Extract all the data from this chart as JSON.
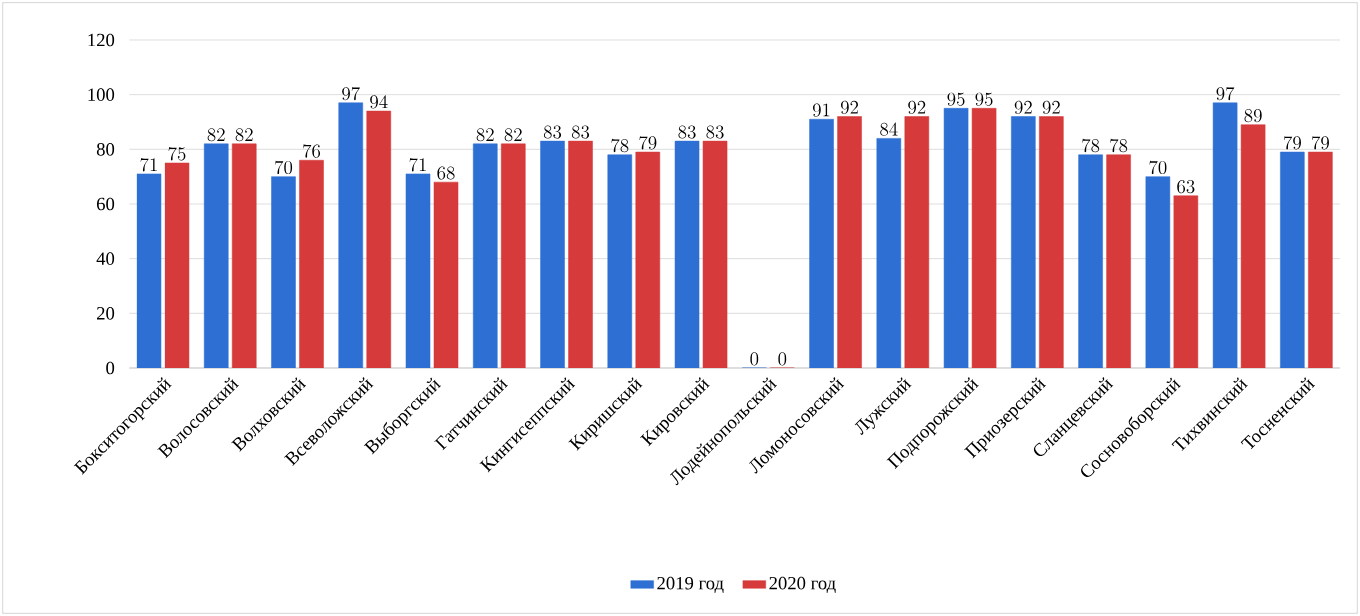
{
  "chart_data": {
    "type": "bar",
    "categories": [
      "Бокситогорский",
      "Волосовский",
      "Волховский",
      "Всеволожский",
      "Выборгский",
      "Гатчинский",
      "Кингисеппский",
      "Киришский",
      "Кировский",
      "Лодейнопольский",
      "Ломоносовский",
      "Лужский",
      "Подпорожский",
      "Приозерский",
      "Сланцевский",
      "Сосновоборский",
      "Тихвинский",
      "Тосненский"
    ],
    "series": [
      {
        "name": "2019 год",
        "color": "#2e6fd4",
        "values": [
          71,
          82,
          70,
          97,
          71,
          82,
          83,
          78,
          83,
          0,
          91,
          84,
          95,
          92,
          78,
          70,
          97,
          79
        ]
      },
      {
        "name": "2020 год",
        "color": "#d63a3a",
        "values": [
          75,
          82,
          76,
          94,
          68,
          82,
          83,
          79,
          83,
          0,
          92,
          92,
          95,
          92,
          78,
          63,
          89,
          79
        ]
      }
    ],
    "ylim": [
      0,
      120
    ],
    "yticks": [
      0,
      20,
      40,
      60,
      80,
      100,
      120
    ],
    "grid": "y",
    "legend": "bottom",
    "data_labels": true
  }
}
